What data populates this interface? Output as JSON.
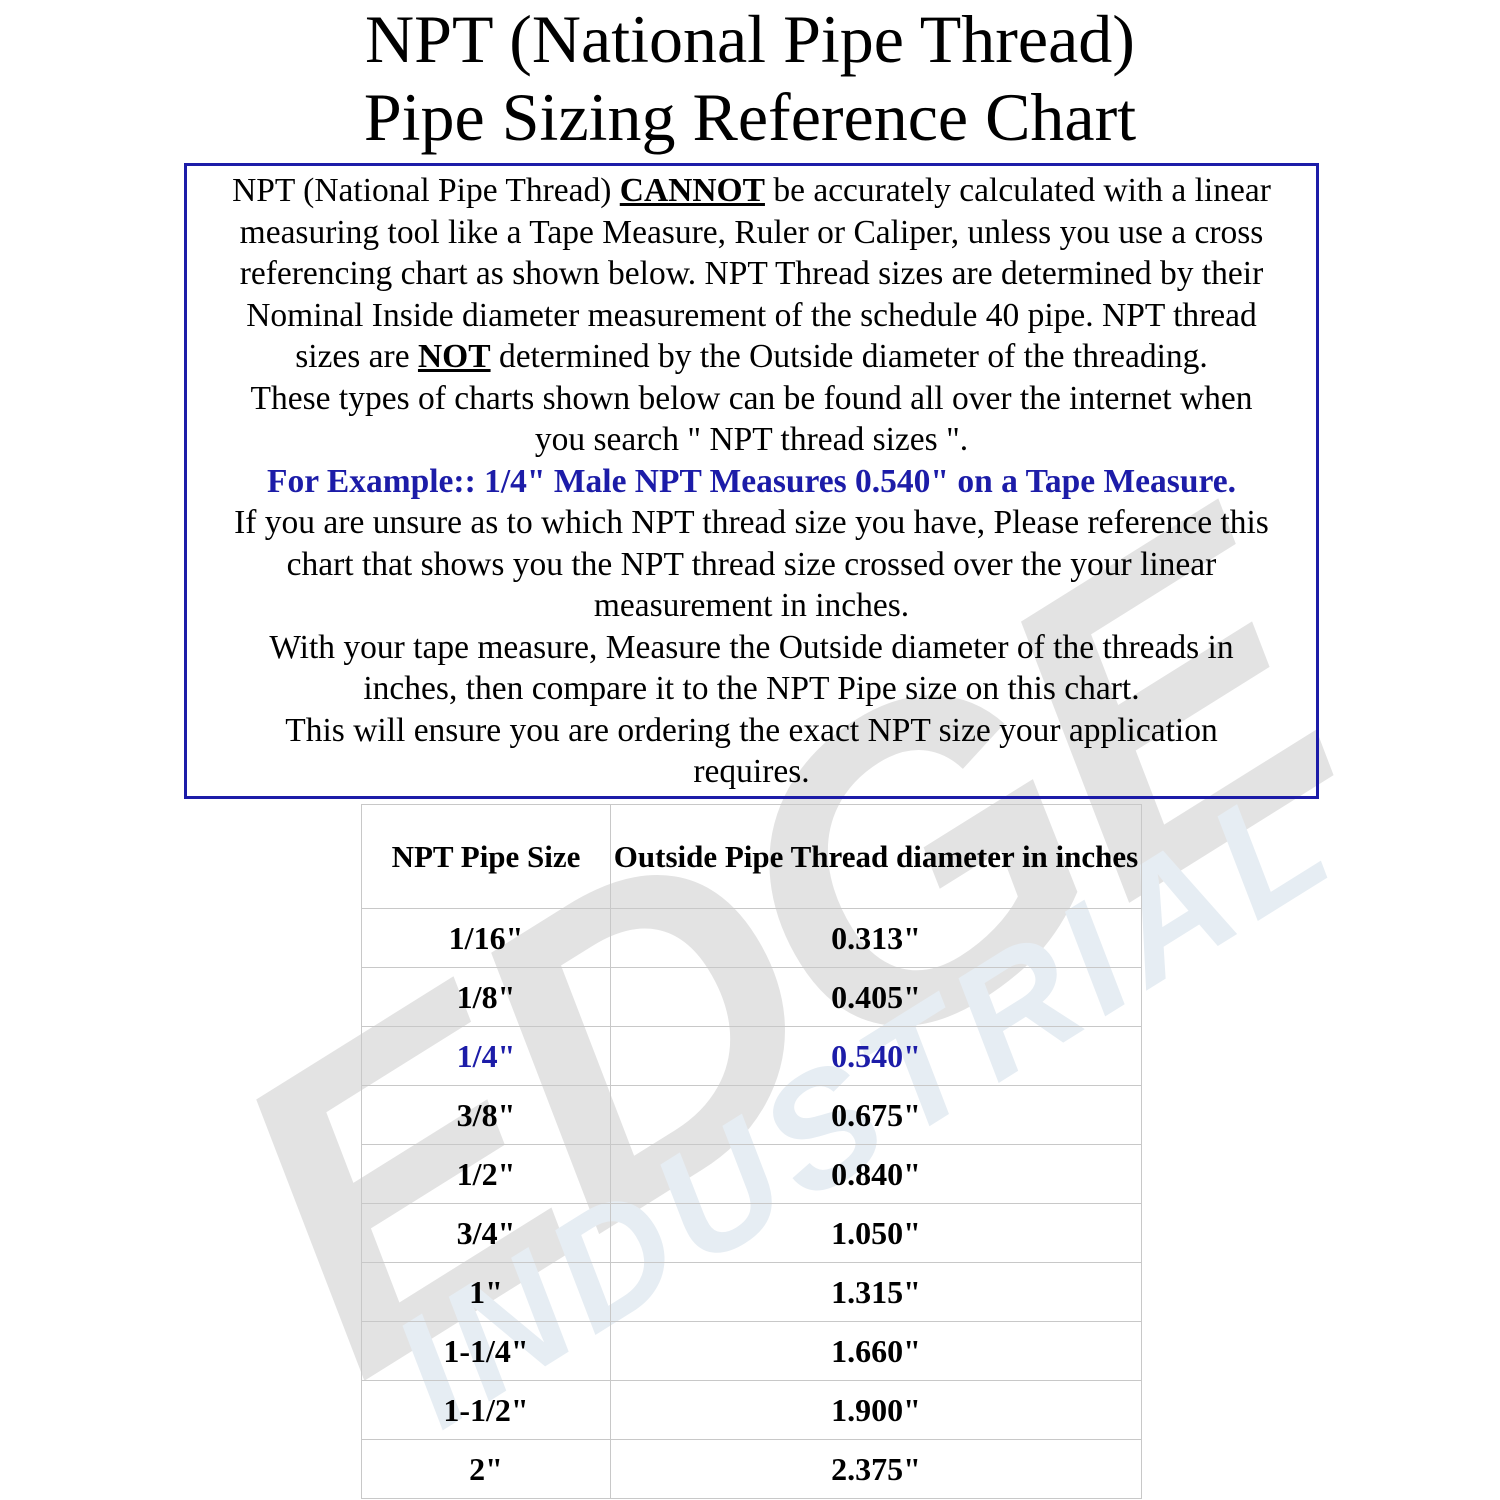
{
  "watermark": {
    "logo_text": "EDGE",
    "logo_subtext": "INDUSTRIAL"
  },
  "title": {
    "line1": "NPT (National Pipe Thread)",
    "line2": "Pipe Sizing Reference Chart"
  },
  "notice": {
    "border_color": "#1c1ca8",
    "l0a": "NPT (National Pipe Thread) ",
    "l0b": "CANNOT",
    "l0c": " be accurately calculated with a linear",
    "l1": "measuring tool like a Tape Measure, Ruler or Caliper, unless you use a cross",
    "l2": "referencing chart as shown below. NPT Thread sizes are determined by their",
    "l3": "Nominal Inside diameter measurement of the schedule 40 pipe. NPT thread",
    "l4a": "sizes are ",
    "l4b": "NOT",
    "l4c": " determined by the Outside diameter of the threading.",
    "l5": "These types of charts shown below can be found all over the internet when",
    "l6": "you search \" NPT thread sizes \".",
    "l7": "For Example::  1/4\" Male NPT Measures 0.540\" on a Tape Measure.",
    "l8": "If you are unsure as to which NPT thread size you have, Please reference this",
    "l9": "chart that shows you the NPT thread size crossed over the your linear",
    "l10": "measurement in inches.",
    "l11": "With your tape measure, Measure the Outside diameter of the threads in",
    "l12": "inches, then compare it to the NPT Pipe size on this chart.",
    "l13": "This will ensure you are ordering the exact NPT size your application",
    "l14": "requires."
  },
  "table": {
    "headers": [
      "NPT Pipe Size",
      "Outside Pipe Thread diameter in inches"
    ],
    "highlight_color": "#1c1ca8",
    "rows": [
      [
        "1/16\"",
        "0.313\""
      ],
      [
        "1/8\"",
        "0.405\""
      ],
      [
        "1/4\"",
        "0.540\""
      ],
      [
        "3/8\"",
        "0.675\""
      ],
      [
        "1/2\"",
        "0.840\""
      ],
      [
        "3/4\"",
        "1.050\""
      ],
      [
        "1\"",
        "1.315\""
      ],
      [
        "1-1/4\"",
        "1.660\""
      ],
      [
        "1-1/2\"",
        "1.900\""
      ],
      [
        "2\"",
        "2.375\""
      ]
    ],
    "highlighted_row": "1/4\""
  }
}
